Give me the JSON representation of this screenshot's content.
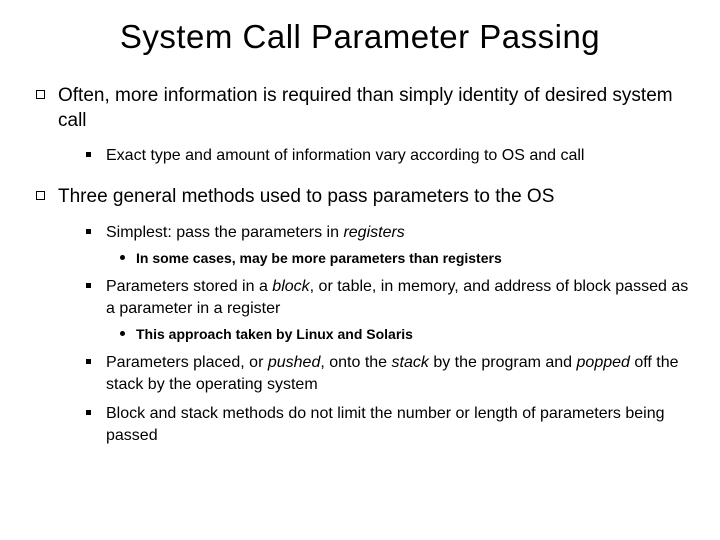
{
  "title": "System Call Parameter Passing",
  "b1": {
    "text": "Often, more information is required than simply identity of desired system call",
    "sub1": "Exact type and amount of information vary according to OS and call"
  },
  "b2": {
    "text": "Three general methods used to pass parameters to the OS",
    "s1": {
      "pre": "Simplest:  pass the parameters in ",
      "em": "registers"
    },
    "s1n1": "In some cases, may be more parameters than registers",
    "s2": {
      "p1": "Parameters stored in a ",
      "em1": "block",
      "p2": ", or table, in memory, and address of block passed as a parameter in a register"
    },
    "s2n1": "This approach taken by Linux and Solaris",
    "s3": {
      "p1": "Parameters placed, or ",
      "em1": "pushed",
      "p2": ", onto the ",
      "em2": "stack",
      "p3": " by the program and ",
      "em3": "popped",
      "p4": " off the stack by the operating system"
    },
    "s4": "Block and stack methods do not limit the number or length of parameters being passed"
  }
}
